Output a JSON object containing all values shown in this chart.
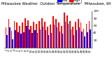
{
  "title": "Milwaukee Weather  Outdoor Temperature    Milwaukee, WI",
  "legend_high": "High",
  "legend_low": "Low",
  "high_color": "#ff0000",
  "low_color": "#0000ff",
  "background_color": "#ffffff",
  "ylim": [
    0,
    100
  ],
  "yticks": [
    20,
    40,
    60,
    80,
    100
  ],
  "bar_width": 0.4,
  "days": [
    1,
    2,
    3,
    4,
    5,
    6,
    7,
    8,
    9,
    10,
    11,
    12,
    13,
    14,
    15,
    16,
    17,
    18,
    19,
    20,
    21,
    22,
    23,
    24,
    25,
    26,
    27,
    28,
    29,
    30,
    31
  ],
  "highs": [
    55,
    78,
    45,
    72,
    68,
    60,
    68,
    80,
    74,
    60,
    70,
    64,
    72,
    80,
    70,
    58,
    62,
    85,
    78,
    68,
    60,
    95,
    88,
    72,
    58,
    70,
    78,
    68,
    52,
    65,
    72
  ],
  "lows": [
    35,
    55,
    22,
    48,
    42,
    38,
    42,
    60,
    50,
    40,
    48,
    40,
    50,
    58,
    48,
    34,
    40,
    62,
    55,
    44,
    38,
    70,
    65,
    50,
    35,
    48,
    55,
    44,
    30,
    42,
    50
  ],
  "dashed_bar_indices": [
    21,
    22,
    23
  ],
  "title_fontsize": 3.8,
  "tick_fontsize": 3.0,
  "legend_fontsize": 3.2
}
